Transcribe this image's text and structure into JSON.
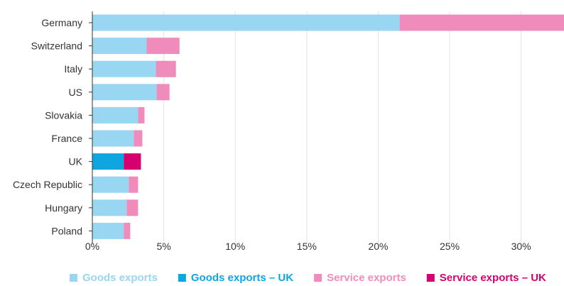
{
  "chart_data": {
    "type": "bar",
    "orientation": "horizontal",
    "stacked": true,
    "categories": [
      "Germany",
      "Switzerland",
      "Italy",
      "US",
      "Slovakia",
      "France",
      "UK",
      "Czech Republic",
      "Hungary",
      "Poland"
    ],
    "x_ticks": [
      "0%",
      "5%",
      "10%",
      "15%",
      "20%",
      "25%",
      "30%"
    ],
    "xlim": [
      0,
      33
    ],
    "grid": "vertical",
    "highlight_category": "UK",
    "series": [
      {
        "name": "Goods exports",
        "color": "#99d6f2",
        "values": [
          21.5,
          3.8,
          4.45,
          4.5,
          3.2,
          2.9,
          null,
          2.55,
          2.4,
          2.2
        ]
      },
      {
        "name": "Goods exports – UK",
        "color": "#0ea5e0",
        "values": [
          null,
          null,
          null,
          null,
          null,
          null,
          2.2,
          null,
          null,
          null
        ]
      },
      {
        "name": "Service exports",
        "color": "#f08cbc",
        "values": [
          11.5,
          2.3,
          1.4,
          0.9,
          0.45,
          0.6,
          null,
          0.65,
          0.8,
          0.45
        ]
      },
      {
        "name": "Service exports – UK",
        "color": "#d6006e",
        "values": [
          null,
          null,
          null,
          null,
          null,
          null,
          1.2,
          null,
          null,
          null
        ]
      }
    ],
    "legend_position": "bottom"
  }
}
